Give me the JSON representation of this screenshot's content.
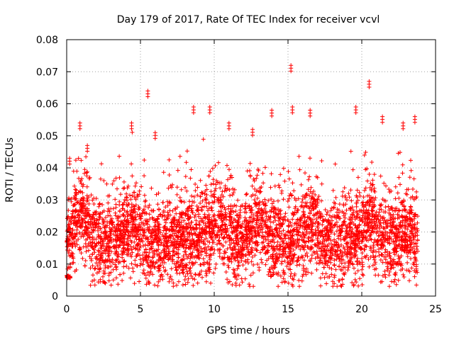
{
  "chart_data": {
    "type": "scatter",
    "title": "Day 179 of 2017, Rate Of TEC Index for receiver vcvl",
    "xlabel": "GPS time / hours",
    "ylabel": "ROTI / TECUs",
    "xlim": [
      0,
      25
    ],
    "ylim": [
      0,
      0.08
    ],
    "xticks": [
      "0",
      "5",
      "10",
      "15",
      "20",
      "25"
    ],
    "yticks": [
      "0",
      "0.01",
      "0.02",
      "0.03",
      "0.04",
      "0.05",
      "0.06",
      "0.07",
      "0.08"
    ],
    "grid": true,
    "marker": "plus",
    "series_color": "#ff0000",
    "data_coverage": [
      0.0,
      23.8
    ],
    "notable_points": [
      {
        "x": 0.2,
        "y": 0.043
      },
      {
        "x": 0.9,
        "y": 0.054
      },
      {
        "x": 1.4,
        "y": 0.047
      },
      {
        "x": 4.4,
        "y": 0.054
      },
      {
        "x": 5.5,
        "y": 0.064
      },
      {
        "x": 6.0,
        "y": 0.051
      },
      {
        "x": 8.6,
        "y": 0.059
      },
      {
        "x": 9.7,
        "y": 0.059
      },
      {
        "x": 11.0,
        "y": 0.054
      },
      {
        "x": 12.6,
        "y": 0.052
      },
      {
        "x": 13.9,
        "y": 0.058
      },
      {
        "x": 15.2,
        "y": 0.072
      },
      {
        "x": 15.3,
        "y": 0.059
      },
      {
        "x": 16.5,
        "y": 0.058
      },
      {
        "x": 19.6,
        "y": 0.059
      },
      {
        "x": 20.5,
        "y": 0.067
      },
      {
        "x": 21.4,
        "y": 0.056
      },
      {
        "x": 22.8,
        "y": 0.054
      },
      {
        "x": 23.6,
        "y": 0.056
      }
    ]
  }
}
